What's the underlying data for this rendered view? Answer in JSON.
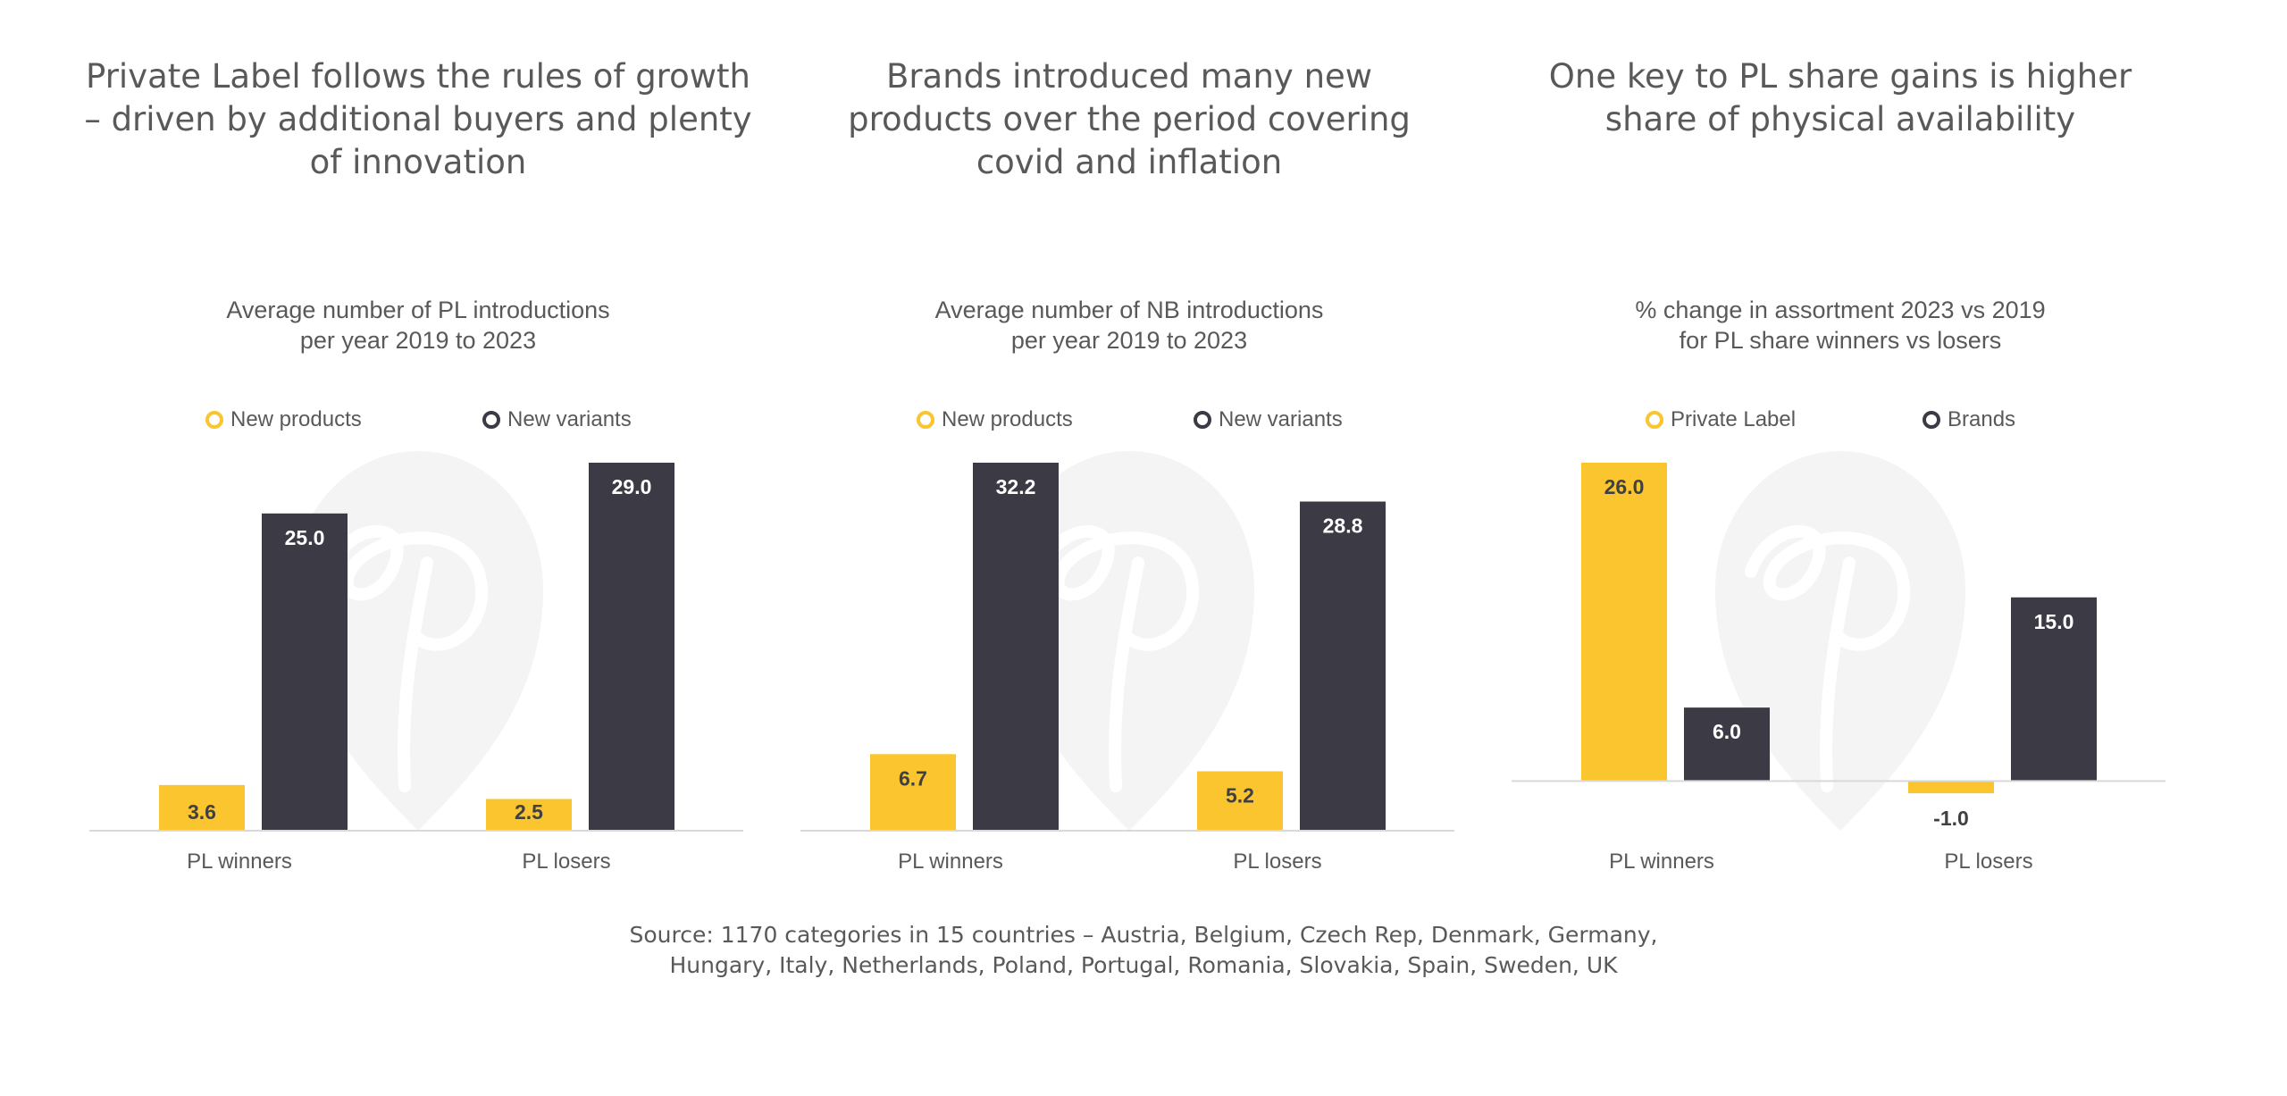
{
  "colors": {
    "yellow": "#fbc52f",
    "dark": "#3c3b45",
    "text": "#595959",
    "axis": "#d9d9d9"
  },
  "source": {
    "line1": "Source: 1170  categories in 15 countries – Austria, Belgium, Czech Rep, Denmark, Germany,",
    "line2": "Hungary, Italy, Netherlands, Poland, Portugal, Romania, Slovakia, Spain, Sweden, UK"
  },
  "panels": [
    {
      "headline": [
        "Private Label follows the rules of growth",
        "– driven by additional buyers and plenty",
        "of innovation"
      ],
      "chart_data": {
        "type": "bar",
        "title": "Average number of PL introductions per year 2019 to 2023",
        "title_lines": [
          "Average number of PL introductions",
          "per year 2019 to 2023"
        ],
        "categories": [
          "PL winners",
          "PL losers"
        ],
        "series": [
          {
            "name": "New products",
            "values": [
              3.6,
              2.5
            ],
            "labels": [
              "3.6",
              "2.5"
            ]
          },
          {
            "name": "New variants",
            "values": [
              25.0,
              29.0
            ],
            "labels": [
              "25.0",
              "29.0"
            ]
          }
        ],
        "ylim": [
          0,
          29.0
        ],
        "legend": "top"
      }
    },
    {
      "headline": [
        "Brands introduced many new",
        "products over the period covering",
        "covid and inflation"
      ],
      "chart_data": {
        "type": "bar",
        "title": "Average number of NB introductions per year 2019 to 2023",
        "title_lines": [
          "Average number of NB introductions",
          "per year 2019 to 2023"
        ],
        "categories": [
          "PL winners",
          "PL losers"
        ],
        "series": [
          {
            "name": "New products",
            "values": [
              6.7,
              5.2
            ],
            "labels": [
              "6.7",
              "5.2"
            ]
          },
          {
            "name": "New variants",
            "values": [
              32.2,
              28.8
            ],
            "labels": [
              "32.2",
              "28.8"
            ]
          }
        ],
        "ylim": [
          0,
          32.2
        ],
        "legend": "top"
      }
    },
    {
      "headline": [
        "One key to PL share gains is higher",
        "share of physical availability"
      ],
      "chart_data": {
        "type": "bar",
        "title": "% change in assortment 2023 vs 2019 for PL share winners vs losers",
        "title_lines": [
          "% change in assortment 2023 vs 2019",
          "for PL share winners vs losers"
        ],
        "categories": [
          "PL winners",
          "PL losers"
        ],
        "series": [
          {
            "name": "Private  Label",
            "values": [
              26.0,
              -1.0
            ],
            "labels": [
              "26.0",
              "-1.0"
            ]
          },
          {
            "name": "Brands",
            "values": [
              6.0,
              15.0
            ],
            "labels": [
              "6.0",
              "15.0"
            ]
          }
        ],
        "ylim": [
          -1.0,
          26.0
        ],
        "legend": "top"
      }
    }
  ]
}
